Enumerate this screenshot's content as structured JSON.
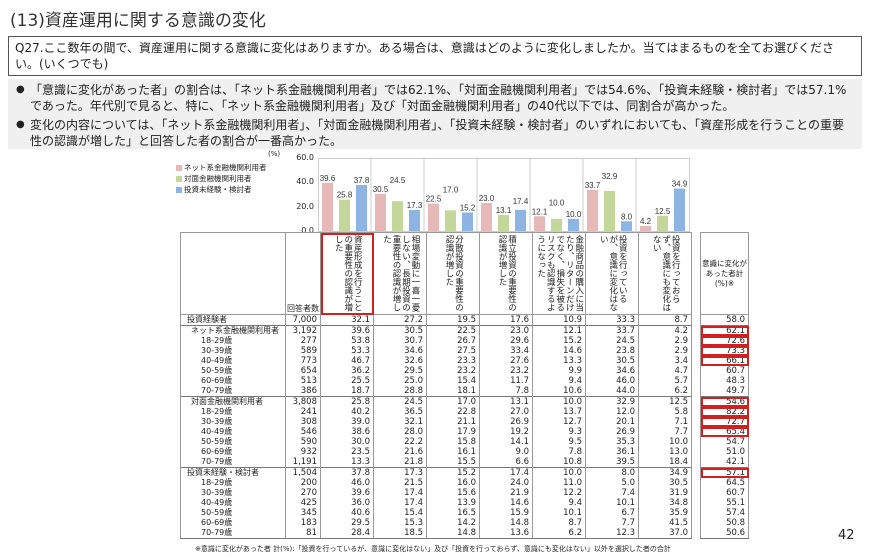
{
  "title": "(13)資産運用に関する意識の変化",
  "question": "Q27.ここ数年の間で、資産運用に関する意識に変化はありますか。ある場合は、意識はどのように変化しましたか。当てはまるものを全てお選びください。(いくつでも)",
  "bullets": [
    "「意識に変化があった者」の割合は、「ネット系金融機関利用者」では62.1%、「対面金融機関利用者」では54.6%、「投資未経験・検討者」では57.1%であった。年代別で見ると、特に、「ネット系金融機関利用者」及び「対面金融機関利用者」の40代以下では、同割合が高かった。",
    "変化の内容については、「ネット系金融機関利用者」、「対面金融機関利用者」、「投資未経験・検討者」のいずれにおいても、「資産形成を行うことの重要性の認識が増した」と回答した者の割合が一番高かった。"
  ],
  "chart_data": {
    "type": "bar",
    "unit": "(%)",
    "ylim": [
      0,
      60
    ],
    "yticks": [
      "60.0",
      "40.0",
      "20.0",
      "0.0"
    ],
    "categories": [
      "資産形成を行うことの重要性の認識が増した",
      "相場変動に一喜一憂しない、長期投資の重要性の認識が増した",
      "分散投資の重要性の認識が増した",
      "積立投資の重要性の認識が増した",
      "金融商品の購入に当たり、リターンだけでなく、損失を被るリスクも認識するようになった",
      "投資を行っているが、意識に変化はない",
      "投資を行っておらず、意識にも変化はない"
    ],
    "series": [
      {
        "name": "ネット系金融機関利用者",
        "color": "#e6b8b7",
        "values": [
          39.6,
          30.5,
          22.5,
          23.0,
          12.1,
          33.7,
          4.2
        ]
      },
      {
        "name": "対面金融機関利用者",
        "color": "#c4d79b",
        "values": [
          25.8,
          24.5,
          17.0,
          13.1,
          10.0,
          32.9,
          12.5
        ]
      },
      {
        "name": "投資未経験・検討者",
        "color": "#8db4e2",
        "values": [
          37.8,
          17.3,
          15.2,
          17.4,
          10.0,
          8.0,
          34.9
        ]
      }
    ]
  },
  "table": {
    "n_header": "回答者数",
    "sum_header": "意識に変化があった者計(%)※",
    "rows": [
      {
        "label": "投資経験者",
        "n": "7,000",
        "v": [
          "32.1",
          "27.2",
          "19.5",
          "17.6",
          "10.9",
          "33.3",
          "8.7"
        ],
        "sum": "58.0",
        "level": 0
      },
      {
        "label": "ネット系金融機関利用者",
        "n": "3,192",
        "v": [
          "39.6",
          "30.5",
          "22.5",
          "23.0",
          "12.1",
          "33.7",
          "4.2"
        ],
        "sum": "62.1",
        "level": 1
      },
      {
        "label": "18-29歳",
        "n": "277",
        "v": [
          "53.8",
          "30.7",
          "26.7",
          "29.6",
          "15.2",
          "24.5",
          "2.9"
        ],
        "sum": "72.6",
        "level": 2
      },
      {
        "label": "30-39歳",
        "n": "589",
        "v": [
          "53.3",
          "34.6",
          "27.5",
          "33.4",
          "14.6",
          "23.8",
          "2.9"
        ],
        "sum": "73.3",
        "level": 2
      },
      {
        "label": "40-49歳",
        "n": "773",
        "v": [
          "46.7",
          "32.6",
          "23.3",
          "27.6",
          "13.3",
          "30.5",
          "3.4"
        ],
        "sum": "66.1",
        "level": 2
      },
      {
        "label": "50-59歳",
        "n": "654",
        "v": [
          "36.2",
          "29.5",
          "23.2",
          "23.2",
          "9.9",
          "34.6",
          "4.7"
        ],
        "sum": "60.7",
        "level": 2
      },
      {
        "label": "60-69歳",
        "n": "513",
        "v": [
          "25.5",
          "25.0",
          "15.4",
          "11.7",
          "9.4",
          "46.0",
          "5.7"
        ],
        "sum": "48.3",
        "level": 2
      },
      {
        "label": "70-79歳",
        "n": "386",
        "v": [
          "18.7",
          "28.8",
          "18.1",
          "7.8",
          "10.6",
          "44.0",
          "6.2"
        ],
        "sum": "49.7",
        "level": 2
      },
      {
        "label": "対面金融機関利用者",
        "n": "3,808",
        "v": [
          "25.8",
          "24.5",
          "17.0",
          "13.1",
          "10.0",
          "32.9",
          "12.5"
        ],
        "sum": "54.6",
        "level": 1
      },
      {
        "label": "18-29歳",
        "n": "241",
        "v": [
          "40.2",
          "36.5",
          "22.8",
          "27.0",
          "13.7",
          "12.0",
          "5.8"
        ],
        "sum": "82.2",
        "level": 2
      },
      {
        "label": "30-39歳",
        "n": "308",
        "v": [
          "39.0",
          "32.1",
          "21.1",
          "26.9",
          "12.7",
          "20.1",
          "7.1"
        ],
        "sum": "72.7",
        "level": 2
      },
      {
        "label": "40-49歳",
        "n": "546",
        "v": [
          "38.6",
          "28.0",
          "17.9",
          "19.2",
          "9.3",
          "26.9",
          "7.7"
        ],
        "sum": "65.4",
        "level": 2
      },
      {
        "label": "50-59歳",
        "n": "590",
        "v": [
          "30.0",
          "22.2",
          "15.8",
          "14.1",
          "9.5",
          "35.3",
          "10.0"
        ],
        "sum": "54.7",
        "level": 2
      },
      {
        "label": "60-69歳",
        "n": "932",
        "v": [
          "23.5",
          "21.6",
          "16.1",
          "9.0",
          "7.8",
          "36.1",
          "13.0"
        ],
        "sum": "51.0",
        "level": 2
      },
      {
        "label": "70-79歳",
        "n": "1,191",
        "v": [
          "13.3",
          "21.8",
          "15.5",
          "6.6",
          "10.8",
          "39.5",
          "18.4"
        ],
        "sum": "42.1",
        "level": 2
      },
      {
        "label": "投資未経験・検討者",
        "n": "1,504",
        "v": [
          "37.8",
          "17.3",
          "15.2",
          "17.4",
          "10.0",
          "8.0",
          "34.9"
        ],
        "sum": "57.1",
        "level": 0
      },
      {
        "label": "18-29歳",
        "n": "200",
        "v": [
          "46.0",
          "21.5",
          "16.0",
          "24.0",
          "11.0",
          "5.0",
          "30.5"
        ],
        "sum": "64.5",
        "level": 2
      },
      {
        "label": "30-39歳",
        "n": "270",
        "v": [
          "39.6",
          "17.4",
          "15.6",
          "21.9",
          "12.2",
          "7.4",
          "31.9"
        ],
        "sum": "60.7",
        "level": 2
      },
      {
        "label": "40-49歳",
        "n": "425",
        "v": [
          "36.0",
          "17.4",
          "13.9",
          "14.6",
          "9.4",
          "10.1",
          "34.8"
        ],
        "sum": "55.1",
        "level": 2
      },
      {
        "label": "50-59歳",
        "n": "345",
        "v": [
          "40.6",
          "15.4",
          "16.5",
          "15.9",
          "10.1",
          "6.7",
          "35.9"
        ],
        "sum": "57.4",
        "level": 2
      },
      {
        "label": "60-69歳",
        "n": "183",
        "v": [
          "29.5",
          "15.3",
          "14.2",
          "14.8",
          "8.7",
          "7.7",
          "41.5"
        ],
        "sum": "50.8",
        "level": 2
      },
      {
        "label": "70-79歳",
        "n": "81",
        "v": [
          "28.4",
          "18.5",
          "14.8",
          "13.6",
          "6.2",
          "12.3",
          "37.0"
        ],
        "sum": "50.6",
        "level": 2
      }
    ]
  },
  "footnote": "※意識に変化があった者 計(%):「投資を行っているが、意識に変化はない」及び「投資を行っておらず、意識にも変化はない」以外を選択した者の合計",
  "page_number": "42"
}
